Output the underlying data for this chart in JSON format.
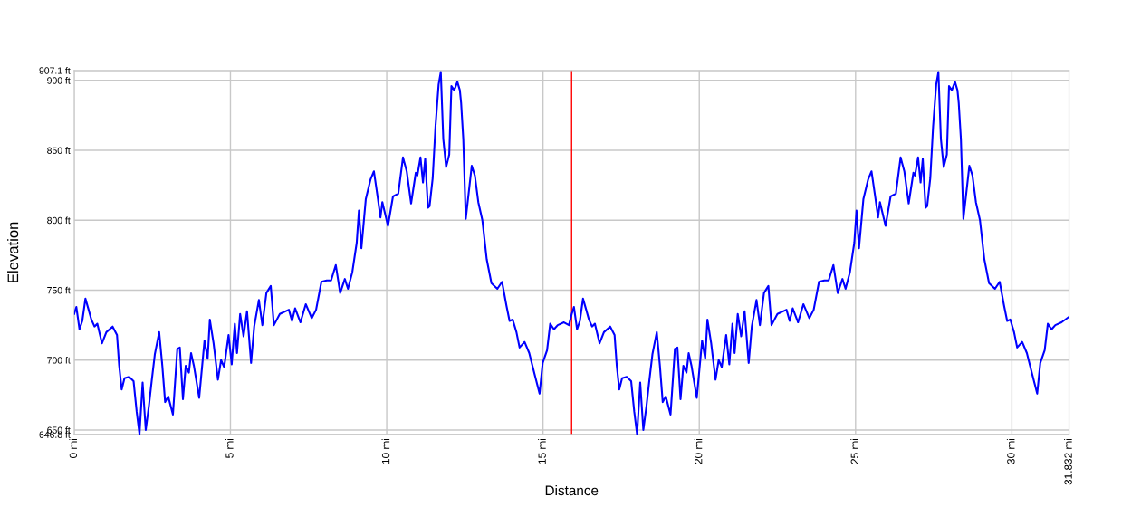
{
  "chart_data": {
    "type": "line",
    "xlabel": "Distance",
    "ylabel": "Elevation",
    "xlim": [
      0,
      31.832
    ],
    "ylim": [
      646.8,
      907.1
    ],
    "xticks": [
      {
        "value": 0,
        "label": "0 mi"
      },
      {
        "value": 5,
        "label": "5 mi"
      },
      {
        "value": 10,
        "label": "10 mi"
      },
      {
        "value": 15,
        "label": "15 mi"
      },
      {
        "value": 20,
        "label": "20 mi"
      },
      {
        "value": 25,
        "label": "25 mi"
      },
      {
        "value": 30,
        "label": "30 mi"
      },
      {
        "value": 31.832,
        "label": "31.832 mi"
      }
    ],
    "yticks": [
      {
        "value": 646.8,
        "label": "646.8 ft"
      },
      {
        "value": 650,
        "label": "650 ft"
      },
      {
        "value": 700,
        "label": "700 ft"
      },
      {
        "value": 750,
        "label": "750 ft"
      },
      {
        "value": 800,
        "label": "800 ft"
      },
      {
        "value": 850,
        "label": "850 ft"
      },
      {
        "value": 900,
        "label": "900 ft"
      },
      {
        "value": 907.1,
        "label": "907.1 ft"
      }
    ],
    "grid": true,
    "marker": "none",
    "line_style": "solid",
    "ref_lines": [
      {
        "axis": "x",
        "value": 15.916,
        "color": "#ff0000",
        "line_style": "solid"
      }
    ],
    "series": [
      {
        "color": "#0000ff",
        "x": [
          0,
          0.07,
          0.17,
          0.26,
          0.36,
          0.45,
          0.55,
          0.65,
          0.74,
          0.89,
          1.03,
          1.23,
          1.37,
          1.44,
          1.52,
          1.61,
          1.76,
          1.9,
          2.0,
          2.09,
          2.19,
          2.29,
          2.39,
          2.48,
          2.58,
          2.72,
          2.82,
          2.91,
          3.01,
          3.16,
          3.3,
          3.38,
          3.48,
          3.57,
          3.67,
          3.74,
          3.83,
          4.0,
          4.17,
          4.27,
          4.34,
          4.46,
          4.6,
          4.7,
          4.8,
          4.94,
          5.04,
          5.14,
          5.21,
          5.31,
          5.42,
          5.53,
          5.66,
          5.76,
          5.91,
          6.02,
          6.15,
          6.29,
          6.39,
          6.58,
          6.87,
          6.97,
          7.07,
          7.24,
          7.41,
          7.6,
          7.74,
          7.91,
          8.08,
          8.22,
          8.37,
          8.51,
          8.66,
          8.76,
          8.9,
          9.04,
          9.11,
          9.19,
          9.33,
          9.48,
          9.59,
          9.72,
          9.8,
          9.86,
          10.04,
          10.2,
          10.37,
          10.52,
          10.64,
          10.78,
          10.93,
          10.98,
          11.08,
          11.16,
          11.23,
          11.32,
          11.37,
          11.47,
          11.56,
          11.66,
          11.73,
          11.81,
          11.9,
          12.0,
          12.07,
          12.16,
          12.26,
          12.34,
          12.38,
          12.45,
          12.53,
          12.63,
          12.72,
          12.82,
          12.93,
          13.06,
          13.2,
          13.35,
          13.54,
          13.69,
          13.83,
          13.93,
          14.03,
          14.15,
          14.25,
          14.41,
          14.56,
          14.73,
          14.89,
          14.99,
          15.13,
          15.23,
          15.35,
          15.47,
          15.67,
          15.83,
          15.92,
          15.99,
          16.09,
          16.18,
          16.28,
          16.37,
          16.47,
          16.57,
          16.66,
          16.81,
          16.95,
          17.15,
          17.29,
          17.36,
          17.44,
          17.53,
          17.68,
          17.82,
          17.92,
          18.01,
          18.11,
          18.21,
          18.31,
          18.4,
          18.5,
          18.64,
          18.74,
          18.83,
          18.93,
          19.08,
          19.22,
          19.3,
          19.4,
          19.49,
          19.59,
          19.66,
          19.75,
          19.92,
          20.09,
          20.19,
          20.26,
          20.38,
          20.52,
          20.62,
          20.72,
          20.86,
          20.96,
          21.06,
          21.13,
          21.23,
          21.34,
          21.45,
          21.58,
          21.68,
          21.83,
          21.94,
          22.07,
          22.21,
          22.31,
          22.5,
          22.79,
          22.89,
          22.99,
          23.16,
          23.33,
          23.52,
          23.66,
          23.83,
          24.0,
          24.14,
          24.29,
          24.43,
          24.58,
          24.68,
          24.82,
          24.96,
          25.03,
          25.11,
          25.25,
          25.4,
          25.51,
          25.64,
          25.72,
          25.78,
          25.96,
          26.12,
          26.29,
          26.44,
          26.56,
          26.7,
          26.85,
          26.9,
          27.0,
          27.08,
          27.15,
          27.24,
          27.29,
          27.39,
          27.48,
          27.58,
          27.65,
          27.73,
          27.82,
          27.92,
          27.99,
          28.08,
          28.18,
          28.26,
          28.3,
          28.37,
          28.45,
          28.55,
          28.64,
          28.74,
          28.85,
          28.98,
          29.12,
          29.27,
          29.46,
          29.61,
          29.75,
          29.85,
          29.95,
          30.07,
          30.17,
          30.33,
          30.48,
          30.65,
          30.81,
          30.91,
          31.05,
          31.15,
          31.27,
          31.39,
          31.59,
          31.832
        ],
        "values": [
          733,
          738,
          722,
          728,
          744,
          737,
          729,
          724,
          726,
          712,
          720,
          724,
          718,
          696,
          679,
          687,
          688,
          685,
          663,
          647,
          684,
          650,
          667,
          685,
          704,
          720,
          696,
          670,
          674,
          661,
          708,
          709,
          672,
          696,
          691,
          705,
          696,
          673,
          714,
          701,
          729,
          712,
          686,
          700,
          695,
          718,
          697,
          726,
          705,
          733,
          717,
          735,
          698,
          724,
          743,
          725,
          748,
          753,
          725,
          733,
          736,
          728,
          737,
          727,
          740,
          730,
          736,
          756,
          757,
          757,
          768,
          748,
          758,
          751,
          763,
          784,
          807,
          780,
          815,
          829,
          835,
          815,
          802,
          813,
          796,
          817,
          819,
          845,
          835,
          812,
          834,
          832,
          845,
          827,
          844,
          809,
          810,
          830,
          867,
          897,
          906,
          858,
          838,
          847,
          896,
          893,
          899,
          893,
          884,
          858,
          801,
          821,
          839,
          832,
          813,
          800,
          772,
          755,
          751,
          756,
          739,
          728,
          729,
          720,
          709,
          713,
          705,
          690,
          676,
          698,
          707,
          726,
          722,
          725,
          727,
          725,
          733,
          738,
          722,
          728,
          744,
          737,
          729,
          724,
          726,
          712,
          720,
          724,
          718,
          696,
          679,
          687,
          688,
          685,
          663,
          647,
          684,
          650,
          667,
          685,
          704,
          720,
          696,
          670,
          674,
          661,
          708,
          709,
          672,
          696,
          691,
          705,
          696,
          673,
          714,
          701,
          729,
          712,
          686,
          700,
          695,
          718,
          697,
          726,
          705,
          733,
          717,
          735,
          698,
          724,
          743,
          725,
          748,
          753,
          725,
          733,
          736,
          728,
          737,
          727,
          740,
          730,
          736,
          756,
          757,
          757,
          768,
          748,
          758,
          751,
          763,
          784,
          807,
          780,
          815,
          829,
          835,
          815,
          802,
          813,
          796,
          817,
          819,
          845,
          835,
          812,
          834,
          832,
          845,
          827,
          844,
          809,
          810,
          830,
          867,
          897,
          906,
          858,
          838,
          847,
          896,
          893,
          899,
          893,
          884,
          858,
          801,
          821,
          839,
          832,
          813,
          800,
          772,
          755,
          751,
          756,
          739,
          728,
          729,
          720,
          709,
          713,
          705,
          690,
          676,
          698,
          707,
          726,
          722,
          725,
          727,
          731
        ]
      }
    ]
  }
}
